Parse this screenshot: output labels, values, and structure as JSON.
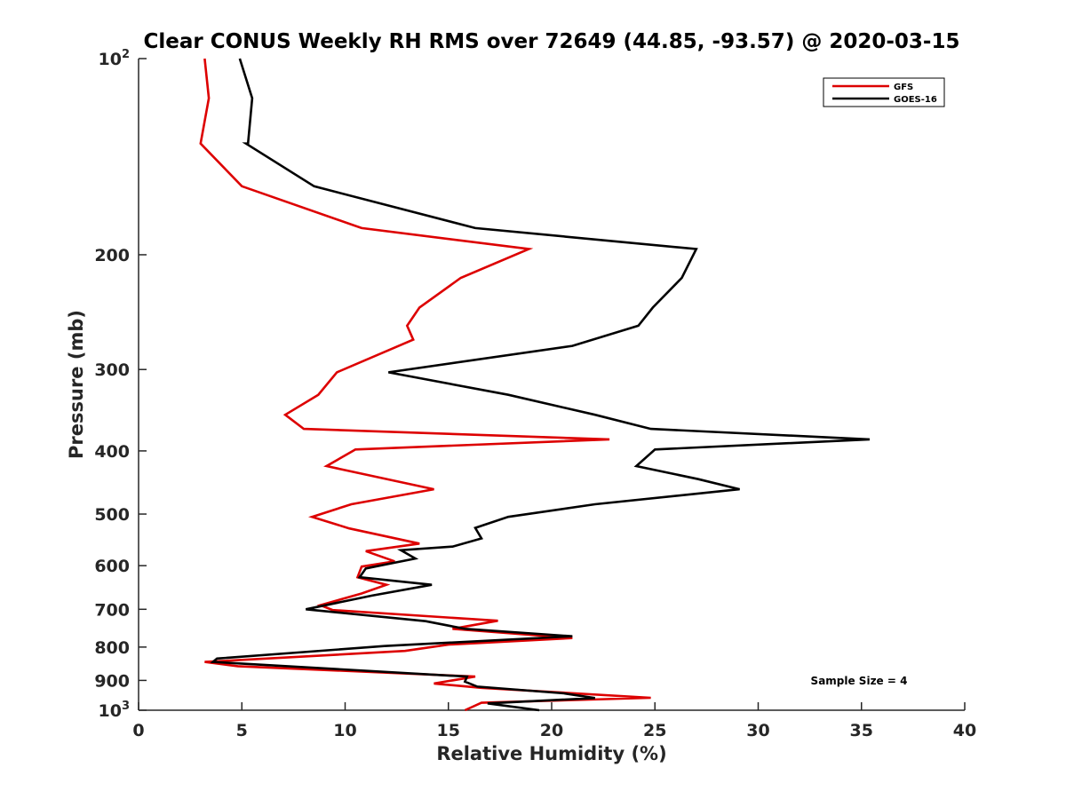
{
  "chart_data": {
    "type": "line",
    "title": "Clear CONUS Weekly RH RMS over 72649 (44.85, -93.57) @ 2020-03-15",
    "xlabel": "Relative Humidity (%)",
    "ylabel": "Pressure (mb)",
    "xlim": [
      0,
      40
    ],
    "ylim": [
      100,
      1000
    ],
    "yscale": "log",
    "y_reversed": true,
    "x_ticks": [
      "0",
      "5",
      "10",
      "15",
      "20",
      "25",
      "30",
      "35",
      "40"
    ],
    "y_ticks": [
      {
        "value": 100,
        "label": "10",
        "sup": "2"
      },
      {
        "value": 200,
        "label": "200",
        "sup": ""
      },
      {
        "value": 300,
        "label": "300",
        "sup": ""
      },
      {
        "value": 400,
        "label": "400",
        "sup": ""
      },
      {
        "value": 500,
        "label": "500",
        "sup": ""
      },
      {
        "value": 600,
        "label": "600",
        "sup": ""
      },
      {
        "value": 700,
        "label": "700",
        "sup": ""
      },
      {
        "value": 800,
        "label": "800",
        "sup": ""
      },
      {
        "value": 900,
        "label": "900",
        "sup": ""
      },
      {
        "value": 1000,
        "label": "10",
        "sup": "3"
      }
    ],
    "grid": false,
    "legend_position": "top-right",
    "annotation": "Sample Size = 4",
    "series": [
      {
        "name": "GFS",
        "color": "#dd0000",
        "x": [
          3.2,
          3.4,
          3.0,
          5.0,
          10.8,
          18.9,
          15.6,
          13.6,
          13.0,
          13.3,
          9.6,
          8.7,
          7.1,
          8.0,
          22.8,
          10.5,
          9.1,
          14.3,
          10.3,
          8.4,
          10.2,
          13.6,
          11.0,
          12.4,
          10.8,
          10.6,
          12.0,
          10.8,
          8.8,
          9.4,
          17.4,
          15.2,
          21.0,
          15.0,
          12.9,
          3.2,
          4.8,
          16.3,
          14.3,
          16.6,
          24.8,
          16.6,
          15.8
        ],
        "y": [
          100,
          115,
          135,
          157,
          182,
          196,
          217,
          241,
          257,
          270,
          303,
          328,
          352,
          370,
          384,
          398,
          422,
          458,
          483,
          505,
          526,
          555,
          570,
          591,
          602,
          625,
          642,
          662,
          690,
          702,
          729,
          750,
          775,
          793,
          811,
          843,
          856,
          888,
          910,
          924,
          957,
          974,
          1000
        ]
      },
      {
        "name": "GOES-16",
        "color": "#000000",
        "x": [
          4.9,
          5.5,
          5.3,
          5.2,
          8.5,
          16.3,
          27.0,
          26.3,
          24.9,
          24.2,
          21.0,
          12.1,
          17.9,
          22.1,
          24.8,
          35.4,
          25.0,
          24.1,
          27.1,
          29.1,
          22.1,
          17.9,
          16.3,
          16.6,
          15.2,
          12.7,
          13.4,
          11.0,
          10.7,
          14.2,
          11.3,
          8.1,
          13.9,
          15.8,
          21.0,
          11.9,
          3.8,
          3.6,
          15.9,
          15.8,
          16.4,
          20.6,
          22.1,
          16.9,
          19.4
        ],
        "y": [
          100,
          115,
          135,
          135,
          157,
          182,
          196,
          217,
          241,
          257,
          276,
          303,
          328,
          352,
          370,
          384,
          398,
          422,
          442,
          458,
          483,
          505,
          525,
          545,
          561,
          568,
          585,
          606,
          625,
          642,
          667,
          700,
          730,
          750,
          770,
          797,
          833,
          843,
          888,
          904,
          920,
          942,
          958,
          976,
          1000
        ]
      }
    ]
  }
}
